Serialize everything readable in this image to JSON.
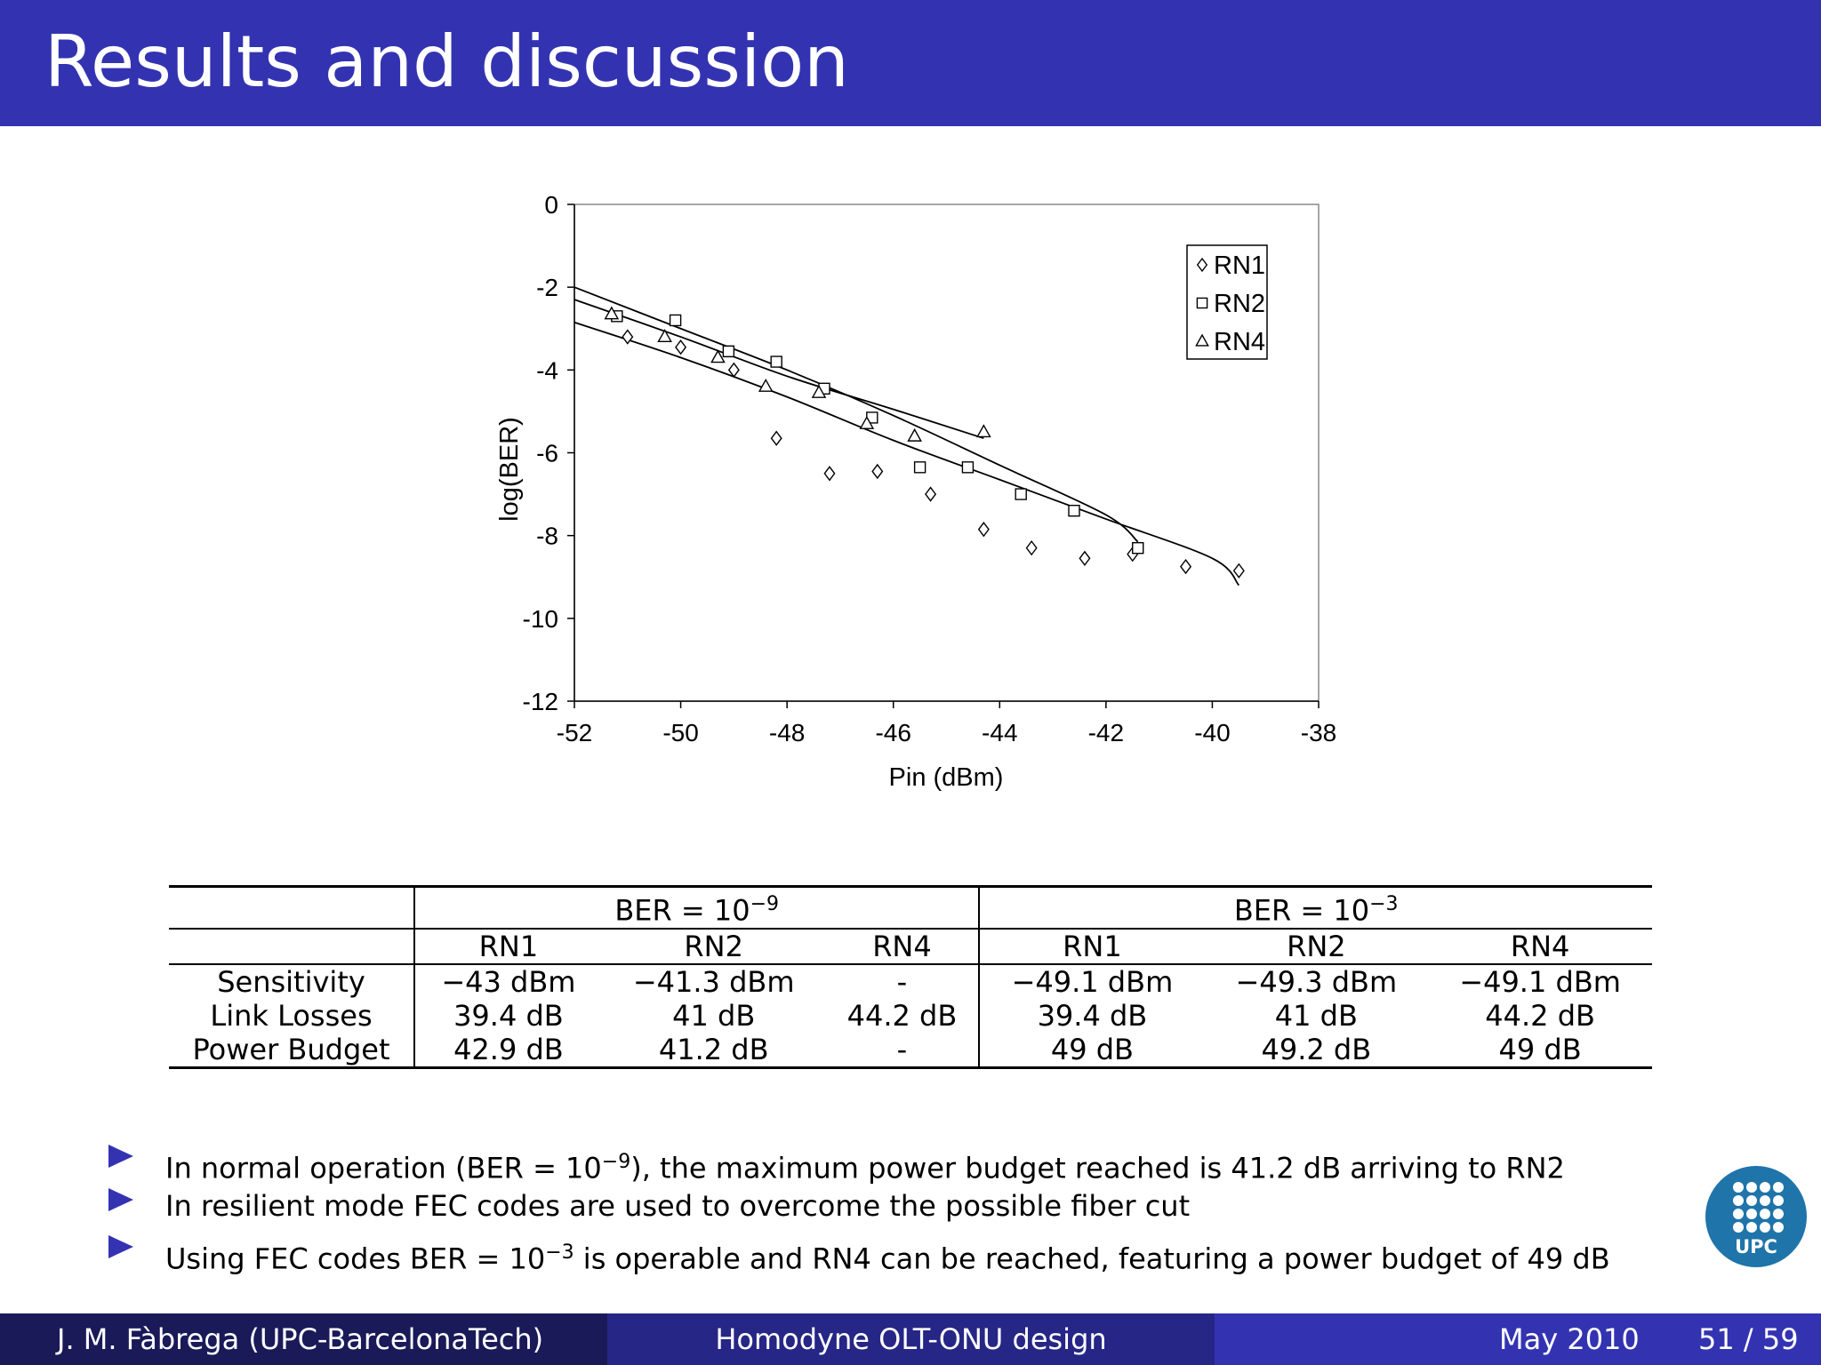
{
  "slide": {
    "title": "Results and discussion"
  },
  "chart_data": {
    "type": "scatter",
    "title": "",
    "xlabel": "Pin (dBm)",
    "ylabel": "log(BER)",
    "xlim": [
      -52,
      -38
    ],
    "ylim": [
      -12,
      0
    ],
    "x_ticks": [
      "-52",
      "-50",
      "-48",
      "-46",
      "-44",
      "-42",
      "-40",
      "-38"
    ],
    "y_ticks": [
      "0",
      "-2",
      "-4",
      "-6",
      "-8",
      "-10",
      "-12"
    ],
    "legend_position": "top-right",
    "series": [
      {
        "name": "RN1",
        "marker": "diamond",
        "points": [
          [
            -51,
            -3.2
          ],
          [
            -50,
            -3.45
          ],
          [
            -49,
            -4.0
          ],
          [
            -48.2,
            -5.65
          ],
          [
            -47.2,
            -6.5
          ],
          [
            -46.3,
            -6.45
          ],
          [
            -45.3,
            -7.0
          ],
          [
            -44.3,
            -7.85
          ],
          [
            -43.4,
            -8.3
          ],
          [
            -42.4,
            -8.55
          ],
          [
            -41.5,
            -8.45
          ],
          [
            -40.5,
            -8.75
          ],
          [
            -39.5,
            -8.85
          ]
        ],
        "trend": [
          [
            -52,
            -2.85
          ],
          [
            -50,
            -3.7
          ],
          [
            -48,
            -4.65
          ],
          [
            -46,
            -5.7
          ],
          [
            -44,
            -6.65
          ],
          [
            -42,
            -7.6
          ],
          [
            -40,
            -8.55
          ],
          [
            -39.5,
            -9.2
          ]
        ]
      },
      {
        "name": "RN2",
        "marker": "square",
        "points": [
          [
            -51.2,
            -2.7
          ],
          [
            -50.1,
            -2.8
          ],
          [
            -49.1,
            -3.55
          ],
          [
            -48.2,
            -3.8
          ],
          [
            -47.3,
            -4.45
          ],
          [
            -46.4,
            -5.15
          ],
          [
            -45.5,
            -6.35
          ],
          [
            -44.6,
            -6.35
          ],
          [
            -43.6,
            -7.0
          ],
          [
            -42.6,
            -7.4
          ],
          [
            -41.4,
            -8.3
          ]
        ],
        "trend": [
          [
            -52,
            -2.0
          ],
          [
            -50,
            -3.0
          ],
          [
            -48,
            -4.0
          ],
          [
            -46,
            -5.1
          ],
          [
            -44,
            -6.3
          ],
          [
            -42,
            -7.5
          ],
          [
            -41.4,
            -8.15
          ]
        ]
      },
      {
        "name": "RN4",
        "marker": "triangle",
        "points": [
          [
            -51.3,
            -2.65
          ],
          [
            -50.3,
            -3.2
          ],
          [
            -49.3,
            -3.7
          ],
          [
            -48.4,
            -4.4
          ],
          [
            -47.4,
            -4.55
          ],
          [
            -46.5,
            -5.3
          ],
          [
            -45.6,
            -5.6
          ],
          [
            -44.3,
            -5.5
          ]
        ],
        "trend": [
          [
            -52,
            -2.3
          ],
          [
            -50,
            -3.2
          ],
          [
            -48,
            -4.15
          ],
          [
            -46,
            -4.95
          ],
          [
            -44.3,
            -5.65
          ]
        ]
      }
    ]
  },
  "table": {
    "group_ber9": "BER = 10",
    "group_ber9_exp": "−9",
    "group_ber3": "BER = 10",
    "group_ber3_exp": "−3",
    "columns": [
      "RN1",
      "RN2",
      "RN4",
      "RN1",
      "RN2",
      "RN4"
    ],
    "rows": [
      {
        "label": "Sensitivity",
        "cells": [
          "−43 dBm",
          "−41.3 dBm",
          "-",
          "−49.1 dBm",
          "−49.3 dBm",
          "−49.1 dBm"
        ]
      },
      {
        "label": "Link Losses",
        "cells": [
          "39.4 dB",
          "41 dB",
          "44.2 dB",
          "39.4 dB",
          "41 dB",
          "44.2 dB"
        ]
      },
      {
        "label": "Power Budget",
        "cells": [
          "42.9 dB",
          "41.2 dB",
          "-",
          "49 dB",
          "49.2 dB",
          "49 dB"
        ]
      }
    ]
  },
  "bullets": [
    {
      "pre": "In normal operation (BER = 10",
      "exp": "−9",
      "post": "), the maximum power budget reached is 41.2 dB arriving to RN2"
    },
    {
      "pre": "In resilient mode FEC codes are used to overcome the possible fiber cut",
      "exp": "",
      "post": ""
    },
    {
      "pre": "Using FEC codes BER = 10",
      "exp": "−3",
      "post": " is operable and RN4 can be reached, featuring a power budget of 49 dB"
    }
  ],
  "logo": {
    "text": "UPC"
  },
  "footer": {
    "author": "J. M. Fàbrega  (UPC-BarcelonaTech)",
    "talk": "Homodyne OLT-ONU design",
    "date": "May 2010",
    "page": "51 / 59"
  },
  "colors": {
    "header_bg": "#3333b2",
    "footer_left": "#1a1a59",
    "footer_mid": "#262686",
    "footer_right": "#3333b2",
    "bullet": "#3333b2",
    "logo_bg": "#1f74aa"
  }
}
